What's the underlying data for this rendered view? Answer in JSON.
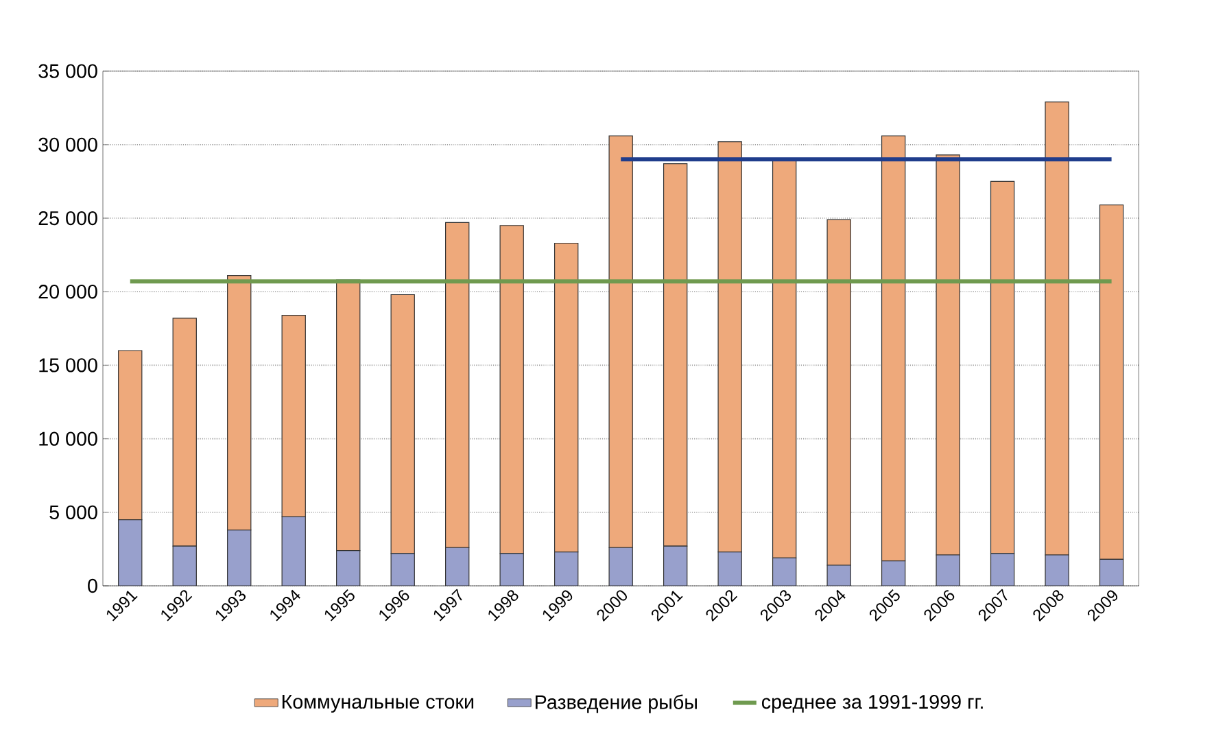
{
  "chart_data": {
    "type": "bar",
    "stacked": true,
    "categories": [
      "1991",
      "1992",
      "1993",
      "1994",
      "1995",
      "1996",
      "1997",
      "1998",
      "1999",
      "2000",
      "2001",
      "2002",
      "2003",
      "2004",
      "2005",
      "2006",
      "2007",
      "2008",
      "2009"
    ],
    "series": [
      {
        "name": "Разведение рыбы",
        "color": "#98a0cc",
        "values": [
          4500,
          2700,
          3800,
          4700,
          2400,
          2200,
          2600,
          2200,
          2300,
          2600,
          2700,
          2300,
          1900,
          1400,
          1700,
          2100,
          2200,
          2100,
          1800
        ]
      },
      {
        "name": "Коммунальные стоки",
        "color": "#eea97b",
        "values": [
          11500,
          15500,
          17300,
          13700,
          18400,
          17600,
          22100,
          22300,
          21000,
          28000,
          26000,
          27900,
          27000,
          23500,
          28900,
          27200,
          25300,
          30800,
          24100
        ]
      },
      {
        "name": "среднее за 1991-1999 гг.",
        "type": "line",
        "color": "#6f9a4f",
        "values": [
          20700,
          20700,
          20700,
          20700,
          20700,
          20700,
          20700,
          20700,
          20700,
          20700,
          20700,
          20700,
          20700,
          20700,
          20700,
          20700,
          20700,
          20700,
          20700
        ]
      },
      {
        "type": "line",
        "color": "#1f3d8c",
        "values": [
          null,
          null,
          null,
          null,
          null,
          null,
          null,
          null,
          null,
          29000,
          29000,
          29000,
          29000,
          29000,
          29000,
          29000,
          29000,
          29000,
          29000
        ]
      }
    ],
    "ylim": [
      0,
      35000
    ],
    "yticks": [
      {
        "value": 0,
        "label": "0"
      },
      {
        "value": 5000,
        "label": "5 000"
      },
      {
        "value": 10000,
        "label": "10 000"
      },
      {
        "value": 15000,
        "label": "15 000"
      },
      {
        "value": 20000,
        "label": "20 000"
      },
      {
        "value": 25000,
        "label": "25 000"
      },
      {
        "value": 30000,
        "label": "30 000"
      },
      {
        "value": 35000,
        "label": "35 000"
      }
    ],
    "grid": "y",
    "legend": "bottom"
  }
}
